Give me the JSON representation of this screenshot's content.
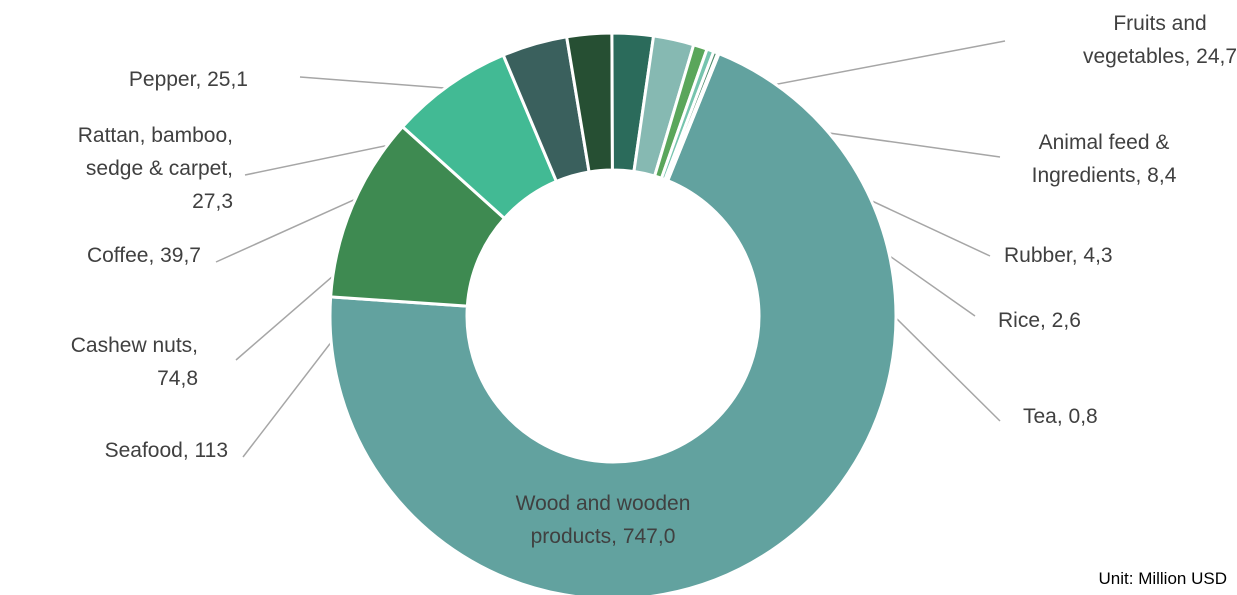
{
  "chart_data": {
    "type": "pie",
    "donut": true,
    "unit_note": "Unit: Million USD",
    "slices": [
      {
        "label": "Wood and wooden products",
        "value_text": "747,0",
        "value": 747.0,
        "color": "#62a29f"
      },
      {
        "label": "Seafood",
        "value_text": "113",
        "value": 113,
        "color": "#3e8a51"
      },
      {
        "label": "Cashew nuts",
        "value_text": "74,8",
        "value": 74.8,
        "color": "#42ba94"
      },
      {
        "label": "Coffee",
        "value_text": "39,7",
        "value": 39.7,
        "color": "#3a605d"
      },
      {
        "label": "Rattan, bamboo, sedge & carpet",
        "value_text": "27,3",
        "value": 27.3,
        "color": "#264f33"
      },
      {
        "label": "Pepper",
        "value_text": "25,1",
        "value": 25.1,
        "color": "#2b6b5b"
      },
      {
        "label": "Fruits and vegetables",
        "value_text": "24,7",
        "value": 24.7,
        "color": "#86b9b2"
      },
      {
        "label": "Animal feed & Ingredients",
        "value_text": "8,4",
        "value": 8.4,
        "color": "#5aa65b"
      },
      {
        "label": "Rubber",
        "value_text": "4,3",
        "value": 4.3,
        "color": "#76c4ae"
      },
      {
        "label": "Rice",
        "value_text": "2,6",
        "value": 2.6,
        "color": "#4d8a6a"
      },
      {
        "label": "Tea",
        "value_text": "0,8",
        "value": 0.8,
        "color": "#9fd0c3"
      }
    ]
  }
}
